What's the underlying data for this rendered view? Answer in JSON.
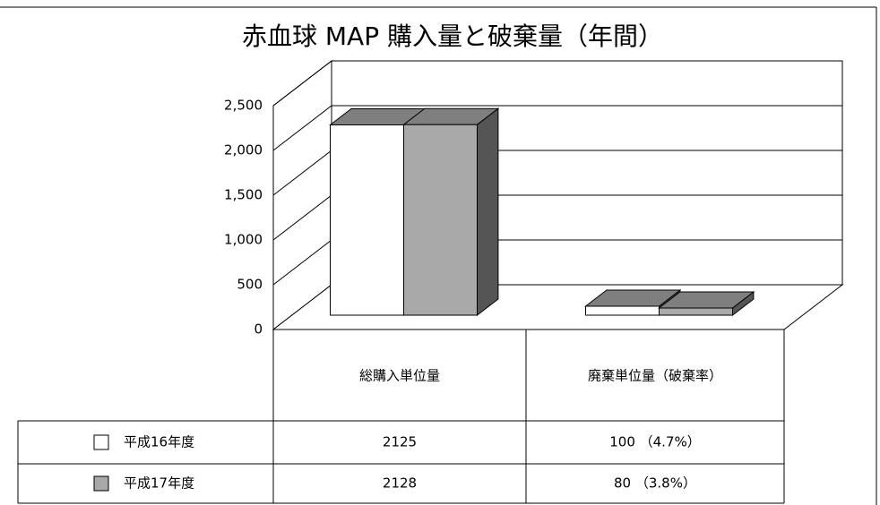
{
  "chart_data": {
    "type": "bar3d",
    "title": "赤血球 MAP 購入量と破棄量（年間）",
    "categories": [
      "総購入単位量",
      "廃棄単位量（破棄率）"
    ],
    "series": [
      {
        "name": "平成16年度",
        "color": "#ffffff",
        "values": [
          2125,
          100
        ],
        "value_labels": [
          "2125",
          "100 （4.7%）"
        ]
      },
      {
        "name": "平成17年度",
        "color": "#a9a9a9",
        "values": [
          2128,
          80
        ],
        "value_labels": [
          "2128",
          "80 （3.8%）"
        ]
      }
    ],
    "ylim": [
      0,
      2500
    ],
    "yticks": [
      0,
      {
        "value": 500,
        "label": "500"
      },
      {
        "value": 1000,
        "label": "1,000"
      },
      {
        "value": 1500,
        "label": "1,500"
      },
      {
        "value": 2000,
        "label": "2,000"
      },
      {
        "value": 2500,
        "label": "2,500"
      }
    ],
    "grid": true
  }
}
